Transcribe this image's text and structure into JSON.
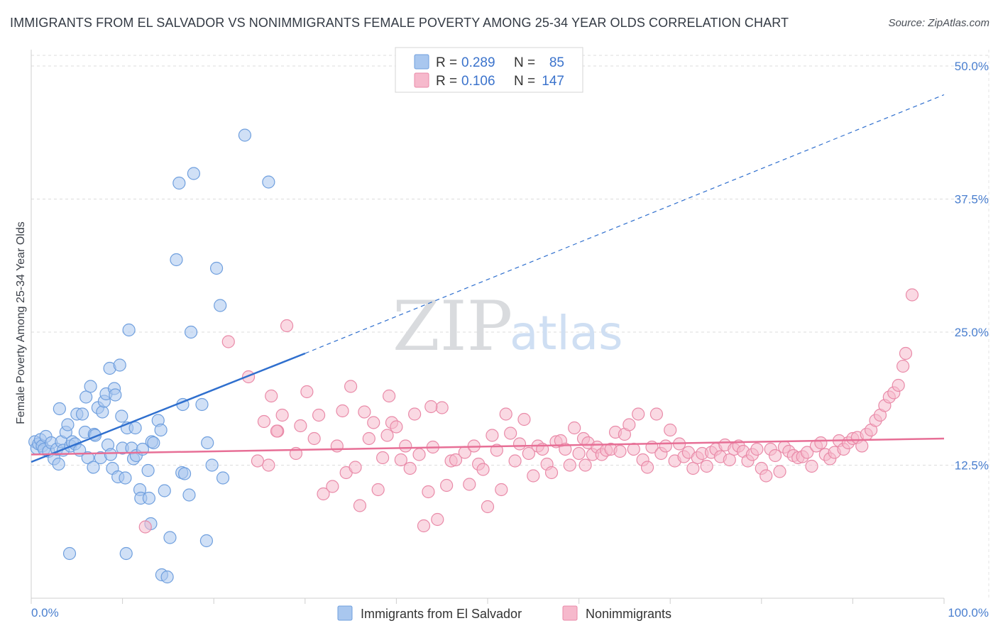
{
  "title": "IMMIGRANTS FROM EL SALVADOR VS NONIMMIGRANTS FEMALE POVERTY AMONG 25-34 YEAR OLDS CORRELATION CHART",
  "source": "Source: ZipAtlas.com",
  "watermark": {
    "zip": "ZIP",
    "atlas": "atlas"
  },
  "legend": {
    "r_label": "R =",
    "n_label": "N =",
    "items": [
      {
        "r": "0.289",
        "n": "85",
        "color": "#a9c7ef"
      },
      {
        "r": "0.106",
        "n": "147",
        "color": "#f6b9cc"
      }
    ]
  },
  "bottom_legend": [
    "Immigrants from El Salvador",
    "Nonimmigrants"
  ],
  "chart_data": {
    "type": "scatter",
    "title": "IMMIGRANTS FROM EL SALVADOR VS NONIMMIGRANTS FEMALE POVERTY AMONG 25-34 YEAR OLDS CORRELATION CHART",
    "xlabel": "",
    "ylabel": "Female Poverty Among 25-34 Year Olds",
    "xlim": [
      0,
      100
    ],
    "ylim": [
      0,
      51
    ],
    "x_ticks": [
      "0.0%",
      "100.0%"
    ],
    "y_ticks": [
      {
        "value": 12.5,
        "label": "12.5%"
      },
      {
        "value": 25.0,
        "label": "25.0%"
      },
      {
        "value": 37.5,
        "label": "37.5%"
      },
      {
        "value": 50.0,
        "label": "50.0%"
      }
    ],
    "grid": true,
    "legend_position": "top-center",
    "series": [
      {
        "name": "Immigrants from El Salvador",
        "color": "#a9c7ef",
        "stroke": "#6f9fde",
        "trend": {
          "x": [
            0,
            30
          ],
          "y": [
            12.8,
            23.0
          ],
          "extend_to": [
            100,
            47.3
          ],
          "color": "#2f6fce"
        },
        "points": [
          [
            0.4,
            14.7
          ],
          [
            0.6,
            14.1
          ],
          [
            0.8,
            14.5
          ],
          [
            1.0,
            14.9
          ],
          [
            1.2,
            14.3
          ],
          [
            1.4,
            14.0
          ],
          [
            1.6,
            15.2
          ],
          [
            1.9,
            13.8
          ],
          [
            2.2,
            14.6
          ],
          [
            2.5,
            13.1
          ],
          [
            2.8,
            14.0
          ],
          [
            3.0,
            12.6
          ],
          [
            3.1,
            17.8
          ],
          [
            3.3,
            14.7
          ],
          [
            3.5,
            13.9
          ],
          [
            3.8,
            15.6
          ],
          [
            4.0,
            16.3
          ],
          [
            4.3,
            14.3
          ],
          [
            4.5,
            14.7
          ],
          [
            4.8,
            14.5
          ],
          [
            5.0,
            17.3
          ],
          [
            5.3,
            13.9
          ],
          [
            5.6,
            17.3
          ],
          [
            5.9,
            15.6
          ],
          [
            6.0,
            18.9
          ],
          [
            6.2,
            13.2
          ],
          [
            6.5,
            19.9
          ],
          [
            6.8,
            12.3
          ],
          [
            6.9,
            15.4
          ],
          [
            7.0,
            15.3
          ],
          [
            7.3,
            17.9
          ],
          [
            7.6,
            13.2
          ],
          [
            7.8,
            17.5
          ],
          [
            8.0,
            18.5
          ],
          [
            8.2,
            19.2
          ],
          [
            8.4,
            14.4
          ],
          [
            8.6,
            21.6
          ],
          [
            8.7,
            13.5
          ],
          [
            8.9,
            12.2
          ],
          [
            9.1,
            19.7
          ],
          [
            9.2,
            19.1
          ],
          [
            9.5,
            11.4
          ],
          [
            9.7,
            21.9
          ],
          [
            9.9,
            17.1
          ],
          [
            10.0,
            14.1
          ],
          [
            10.3,
            11.3
          ],
          [
            10.5,
            16.0
          ],
          [
            10.7,
            25.2
          ],
          [
            11.0,
            14.1
          ],
          [
            11.2,
            13.1
          ],
          [
            11.4,
            16.0
          ],
          [
            11.5,
            13.4
          ],
          [
            11.9,
            10.2
          ],
          [
            12.0,
            9.4
          ],
          [
            12.2,
            14.0
          ],
          [
            12.8,
            12.0
          ],
          [
            12.9,
            9.4
          ],
          [
            13.1,
            7.0
          ],
          [
            13.2,
            14.7
          ],
          [
            13.4,
            14.6
          ],
          [
            13.9,
            16.7
          ],
          [
            14.2,
            15.8
          ],
          [
            14.3,
            2.2
          ],
          [
            14.6,
            10.1
          ],
          [
            14.9,
            2.0
          ],
          [
            15.2,
            5.7
          ],
          [
            15.9,
            31.8
          ],
          [
            16.2,
            39.0
          ],
          [
            16.5,
            11.8
          ],
          [
            16.6,
            18.2
          ],
          [
            16.8,
            11.7
          ],
          [
            17.3,
            9.7
          ],
          [
            17.5,
            25.0
          ],
          [
            17.8,
            39.9
          ],
          [
            18.7,
            18.2
          ],
          [
            19.2,
            5.4
          ],
          [
            19.3,
            14.6
          ],
          [
            19.8,
            12.5
          ],
          [
            20.3,
            31.0
          ],
          [
            20.7,
            27.5
          ],
          [
            21.0,
            11.3
          ],
          [
            23.4,
            43.5
          ],
          [
            4.2,
            4.2
          ],
          [
            26.0,
            39.1
          ],
          [
            10.4,
            4.2
          ]
        ]
      },
      {
        "name": "Nonimmigrants",
        "color": "#f6b9cc",
        "stroke": "#e98aa8",
        "trend": {
          "x": [
            0,
            100
          ],
          "y": [
            13.5,
            15.0
          ],
          "color": "#e76f96"
        },
        "points": [
          [
            12.5,
            6.7
          ],
          [
            21.6,
            24.1
          ],
          [
            23.8,
            20.8
          ],
          [
            25.5,
            16.6
          ],
          [
            26.0,
            12.5
          ],
          [
            26.3,
            19.0
          ],
          [
            27.0,
            15.7
          ],
          [
            27.5,
            17.2
          ],
          [
            28.0,
            25.6
          ],
          [
            29.0,
            13.6
          ],
          [
            29.5,
            16.2
          ],
          [
            30.2,
            19.4
          ],
          [
            31.0,
            15.0
          ],
          [
            31.5,
            17.2
          ],
          [
            32.0,
            9.8
          ],
          [
            33.0,
            10.5
          ],
          [
            33.5,
            14.3
          ],
          [
            34.1,
            17.6
          ],
          [
            34.5,
            11.8
          ],
          [
            35.0,
            19.9
          ],
          [
            35.5,
            12.3
          ],
          [
            36.0,
            8.7
          ],
          [
            36.5,
            17.5
          ],
          [
            37.0,
            15.0
          ],
          [
            37.5,
            16.5
          ],
          [
            38.0,
            10.2
          ],
          [
            38.5,
            13.2
          ],
          [
            39.0,
            15.3
          ],
          [
            39.5,
            16.5
          ],
          [
            40.0,
            16.1
          ],
          [
            40.5,
            13.0
          ],
          [
            41.0,
            14.3
          ],
          [
            41.5,
            12.2
          ],
          [
            42.0,
            17.3
          ],
          [
            42.5,
            13.5
          ],
          [
            43.0,
            6.8
          ],
          [
            43.5,
            10.0
          ],
          [
            44.0,
            14.2
          ],
          [
            44.5,
            7.4
          ],
          [
            45.0,
            17.9
          ],
          [
            45.5,
            10.6
          ],
          [
            46.0,
            12.9
          ],
          [
            46.5,
            13.0
          ],
          [
            47.5,
            13.7
          ],
          [
            48.0,
            10.7
          ],
          [
            48.5,
            14.3
          ],
          [
            49.0,
            12.6
          ],
          [
            49.5,
            12.1
          ],
          [
            50.0,
            8.6
          ],
          [
            50.5,
            15.3
          ],
          [
            51.0,
            13.9
          ],
          [
            51.5,
            10.2
          ],
          [
            52.0,
            17.3
          ],
          [
            52.5,
            15.5
          ],
          [
            53.0,
            12.9
          ],
          [
            53.5,
            14.5
          ],
          [
            54.0,
            16.8
          ],
          [
            54.5,
            13.6
          ],
          [
            55.0,
            11.5
          ],
          [
            55.5,
            14.3
          ],
          [
            56.0,
            14.0
          ],
          [
            56.5,
            12.6
          ],
          [
            57.0,
            11.8
          ],
          [
            57.5,
            14.7
          ],
          [
            58.0,
            14.8
          ],
          [
            58.5,
            14.0
          ],
          [
            59.0,
            12.5
          ],
          [
            59.5,
            16.0
          ],
          [
            60.0,
            13.6
          ],
          [
            60.5,
            15.0
          ],
          [
            61.0,
            14.6
          ],
          [
            61.5,
            13.5
          ],
          [
            62.0,
            14.2
          ],
          [
            62.5,
            13.5
          ],
          [
            63.0,
            13.9
          ],
          [
            63.5,
            14.0
          ],
          [
            64.0,
            15.6
          ],
          [
            64.5,
            13.8
          ],
          [
            65.0,
            15.4
          ],
          [
            65.5,
            16.3
          ],
          [
            66.0,
            14.0
          ],
          [
            66.5,
            17.3
          ],
          [
            67.0,
            13.0
          ],
          [
            67.5,
            12.3
          ],
          [
            68.0,
            14.2
          ],
          [
            68.5,
            17.3
          ],
          [
            69.0,
            13.6
          ],
          [
            69.5,
            14.3
          ],
          [
            70.0,
            15.8
          ],
          [
            70.5,
            12.9
          ],
          [
            71.0,
            14.5
          ],
          [
            71.5,
            13.3
          ],
          [
            72.0,
            13.7
          ],
          [
            72.5,
            12.2
          ],
          [
            73.0,
            13.2
          ],
          [
            73.5,
            13.6
          ],
          [
            74.0,
            12.4
          ],
          [
            74.5,
            13.7
          ],
          [
            75.0,
            14.0
          ],
          [
            75.5,
            13.3
          ],
          [
            76.0,
            14.4
          ],
          [
            76.5,
            13.0
          ],
          [
            77.0,
            14.0
          ],
          [
            77.5,
            14.3
          ],
          [
            78.0,
            13.8
          ],
          [
            78.5,
            12.9
          ],
          [
            79.0,
            13.5
          ],
          [
            79.5,
            14.0
          ],
          [
            80.0,
            12.2
          ],
          [
            80.5,
            11.5
          ],
          [
            81.0,
            14.0
          ],
          [
            81.5,
            13.4
          ],
          [
            82.0,
            11.9
          ],
          [
            82.5,
            14.2
          ],
          [
            83.0,
            13.8
          ],
          [
            83.5,
            13.4
          ],
          [
            84.0,
            13.2
          ],
          [
            84.5,
            13.3
          ],
          [
            85.0,
            13.7
          ],
          [
            85.5,
            12.4
          ],
          [
            86.0,
            14.3
          ],
          [
            86.5,
            14.6
          ],
          [
            87.0,
            13.5
          ],
          [
            87.5,
            13.1
          ],
          [
            88.0,
            13.7
          ],
          [
            88.5,
            14.8
          ],
          [
            89.0,
            14.0
          ],
          [
            89.5,
            14.6
          ],
          [
            90.0,
            15.0
          ],
          [
            90.5,
            15.1
          ],
          [
            91.0,
            14.3
          ],
          [
            91.5,
            15.4
          ],
          [
            92.0,
            15.8
          ],
          [
            92.5,
            16.7
          ],
          [
            93.0,
            17.2
          ],
          [
            93.5,
            18.1
          ],
          [
            94.0,
            18.9
          ],
          [
            94.5,
            19.3
          ],
          [
            95.0,
            20.0
          ],
          [
            95.5,
            21.8
          ],
          [
            95.8,
            23.0
          ],
          [
            96.5,
            28.5
          ],
          [
            60.7,
            12.5
          ],
          [
            43.8,
            18.0
          ],
          [
            26.9,
            15.7
          ],
          [
            39.2,
            19.0
          ],
          [
            24.8,
            12.9
          ]
        ]
      }
    ]
  }
}
